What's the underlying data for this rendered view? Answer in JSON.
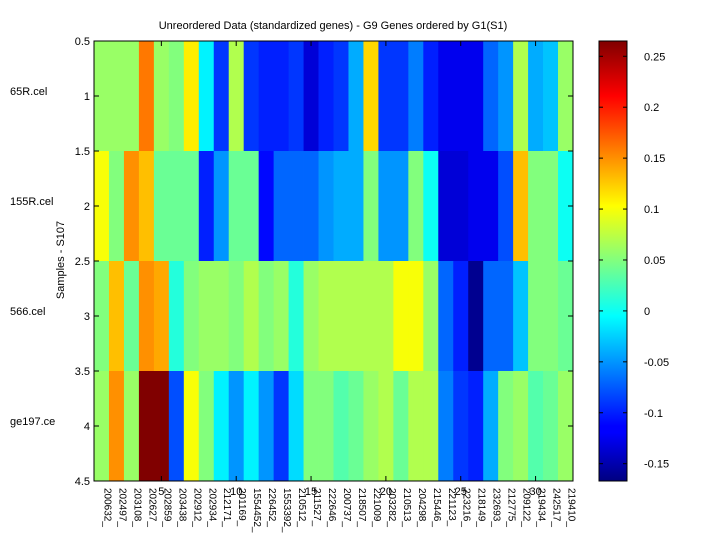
{
  "chart_data": {
    "type": "heatmap",
    "title": "Unreordered Data (standardized genes) - G9 Genes ordered by G1(S1)",
    "ylabel": "Samples - S107",
    "xlabel": "",
    "row_labels": [
      "65R.cel",
      "155R.cel",
      "566.cel",
      "ge197.ce"
    ],
    "y_ticks": [
      "0.5",
      "1",
      "1.5",
      "2",
      "2.5",
      "3",
      "3.5",
      "4",
      "4.5"
    ],
    "x_ticks": [
      "5",
      "10",
      "15",
      "20",
      "25",
      "30"
    ],
    "column_labels": [
      "200632_",
      "202497_",
      "203108_",
      "202627_",
      "202859_",
      "203438_",
      "202912_",
      "202934_",
      "212171_",
      "201169_",
      "1554452_",
      "226452_",
      "1553392_",
      "210512_",
      "211527_",
      "222646_",
      "200737_",
      "218507_",
      "221009_",
      "203282_",
      "210513_",
      "204298_",
      "215446_",
      "221123_",
      "223216_",
      "218149_",
      "232693_",
      "212775_",
      "209122_",
      "219434_",
      "242517_",
      "219410_"
    ],
    "colorbar": {
      "ticks": [
        0.25,
        0.2,
        0.15,
        0.1,
        0.05,
        0,
        -0.05,
        -0.1,
        -0.15
      ],
      "tick_labels": [
        "0.25",
        "0.2",
        "0.15",
        "0.1",
        "0.05",
        "0",
        "-0.05",
        "-0.1",
        "-0.15"
      ],
      "clim": [
        -0.167,
        0.265
      ],
      "colormap": "jet"
    },
    "values": [
      [
        0.06,
        0.06,
        0.06,
        0.16,
        0.06,
        0.05,
        0.11,
        -0.01,
        -0.09,
        0.07,
        -0.09,
        -0.1,
        -0.1,
        -0.09,
        -0.13,
        -0.1,
        -0.09,
        -0.04,
        0.12,
        -0.09,
        -0.09,
        -0.06,
        -0.1,
        -0.12,
        -0.12,
        -0.12,
        -0.07,
        -0.05,
        0.07,
        -0.04,
        -0.03,
        0.06
      ],
      [
        0.1,
        0.05,
        0.15,
        0.13,
        0.04,
        0.04,
        0.04,
        -0.1,
        -0.05,
        0.04,
        0.04,
        -0.11,
        -0.07,
        -0.07,
        -0.07,
        -0.05,
        -0.04,
        -0.04,
        0.05,
        -0.05,
        -0.05,
        0.05,
        0.0,
        -0.13,
        -0.13,
        -0.12,
        -0.12,
        -0.08,
        0.13,
        0.05,
        0.05,
        0.0
      ],
      [
        0.05,
        0.13,
        0.04,
        0.15,
        0.14,
        0.01,
        0.05,
        0.06,
        0.06,
        0.05,
        0.07,
        0.05,
        0.06,
        0.01,
        0.06,
        0.07,
        0.07,
        0.07,
        0.07,
        0.07,
        0.1,
        0.1,
        0.06,
        -0.07,
        -0.1,
        -0.16,
        -0.07,
        -0.07,
        -0.03,
        0.05,
        0.05,
        0.04
      ],
      [
        0.06,
        0.15,
        0.06,
        0.27,
        0.27,
        -0.08,
        0.1,
        0.05,
        -0.01,
        -0.05,
        -0.01,
        -0.05,
        -0.09,
        -0.02,
        0.05,
        0.05,
        0.03,
        0.04,
        0.06,
        0.07,
        0.04,
        0.07,
        0.07,
        -0.06,
        -0.09,
        -0.1,
        -0.04,
        0.05,
        0.06,
        0.03,
        0.04,
        0.06
      ]
    ]
  }
}
